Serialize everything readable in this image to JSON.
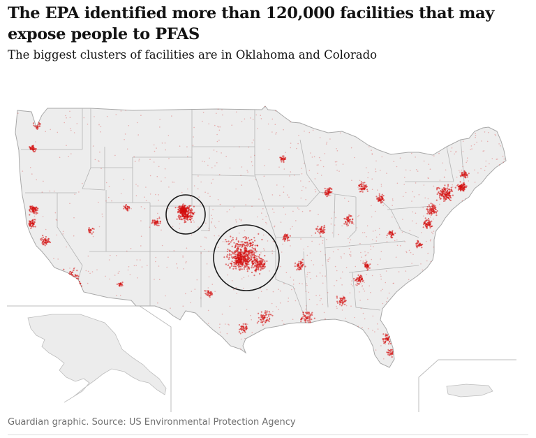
{
  "header": {
    "title": "The EPA identified more than 120,000 facilities that may expose people to PFAS",
    "subtitle": "The biggest clusters of facilities are in Oklahoma and Colorado"
  },
  "footer": {
    "source": "Guardian graphic. Source: US Environmental Protection Agency"
  },
  "map": {
    "region": "United States",
    "insets": [
      "Alaska",
      "Puerto Rico"
    ],
    "highlighted_clusters": [
      "Colorado",
      "Oklahoma"
    ]
  },
  "colors": {
    "facility_dot": "#d40f0f",
    "land": "#ededed",
    "state_border": "#a8a8a8",
    "highlight_circle": "#1a1a1a"
  }
}
